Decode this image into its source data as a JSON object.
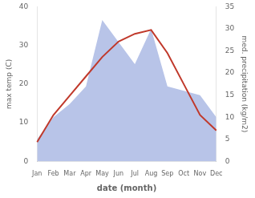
{
  "chart_data": {
    "type": "line",
    "categories": [
      "Jan",
      "Feb",
      "Mar",
      "Apr",
      "May",
      "Jun",
      "Jul",
      "Aug",
      "Sep",
      "Oct",
      "Nov",
      "Dec"
    ],
    "xlabel": "date (month)",
    "ylabel": "max temp (C)",
    "y2label": "med. precipitation (kg/m2)",
    "series": [
      {
        "type": "area",
        "color": "#b8c4e8",
        "axis": "y2",
        "values": [
          5,
          10,
          13,
          17,
          32,
          27,
          22,
          30,
          17,
          16,
          15,
          10
        ]
      },
      {
        "type": "line",
        "color": "#c0392b",
        "values": [
          5,
          12,
          17,
          22,
          27,
          31,
          33,
          34,
          28,
          20,
          12,
          8
        ]
      }
    ],
    "ylim": [
      0,
      40
    ],
    "yticks": [
      0,
      10,
      20,
      30,
      40
    ],
    "y2lim": [
      0,
      35
    ],
    "y2ticks": [
      0,
      5,
      10,
      15,
      20,
      25,
      30,
      35
    ],
    "grid": false
  }
}
